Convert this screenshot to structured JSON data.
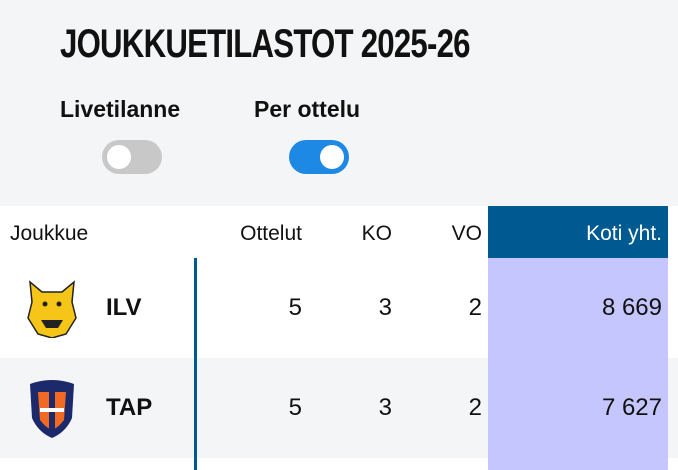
{
  "title": "JOUKKUETILASTOT 2025-26",
  "toggles": [
    {
      "label": "Livetilanne",
      "on": false
    },
    {
      "label": "Per ottelu",
      "on": true
    }
  ],
  "colors": {
    "accent": "#1e88e5",
    "header": "#005a92",
    "highlight": "#c6c6ff"
  },
  "table": {
    "headers": [
      "Joukkue",
      "Ottelut",
      "KO",
      "VO",
      "Koti yht."
    ],
    "rows": [
      {
        "team": "ILV",
        "logo": "ilves-lynx-logo",
        "ottelut": "5",
        "ko": "3",
        "vo": "2",
        "koti": "8 669"
      },
      {
        "team": "TAP",
        "logo": "tappara-shield-logo",
        "ottelut": "5",
        "ko": "3",
        "vo": "2",
        "koti": "7 627"
      }
    ]
  }
}
